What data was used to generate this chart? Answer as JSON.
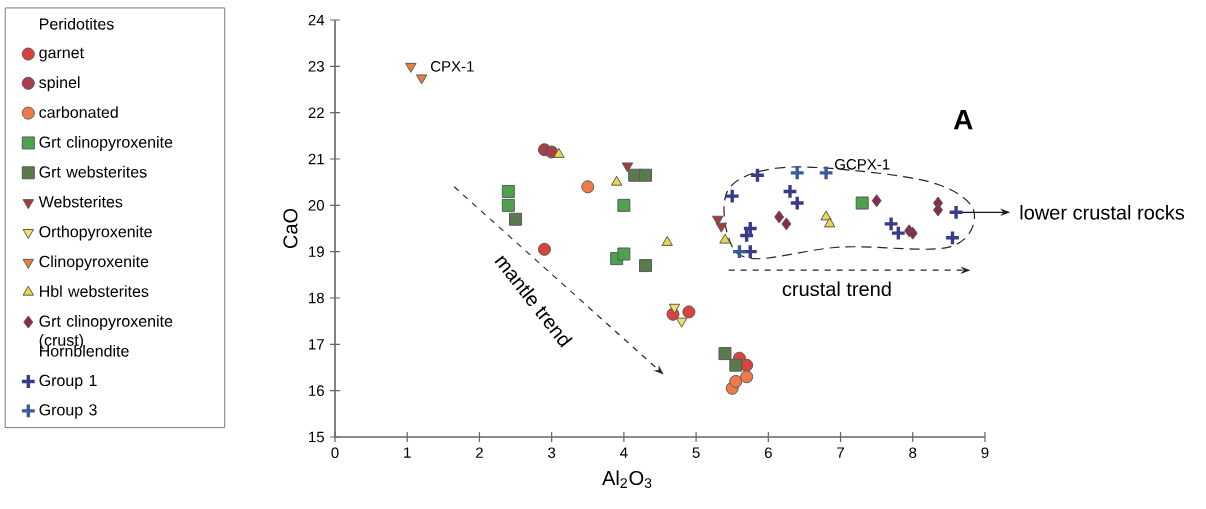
{
  "chart_data": {
    "type": "scatter",
    "xlabel": "Al$_{2}$O$_{3}$",
    "ylabel": "CaO",
    "legend_title": "Peridotites",
    "legend": "left",
    "xlim": [
      0,
      9
    ],
    "ylim": [
      15,
      24
    ],
    "xticks": [
      0,
      1,
      2,
      3,
      4,
      5,
      6,
      7,
      8,
      9
    ],
    "yticks": [
      15,
      16,
      17,
      18,
      19,
      20,
      21,
      22,
      23,
      24
    ],
    "series": [
      {
        "name": "garnet",
        "color": "#d9433c",
        "marker": "circle",
        "x": [
          2.9,
          4.68,
          4.9,
          5.6,
          5.7
        ],
        "values": [
          19.05,
          17.65,
          17.7,
          16.7,
          16.55
        ]
      },
      {
        "name": "spinel",
        "color": "#a8404a",
        "marker": "circle",
        "x": [
          2.9,
          3.0
        ],
        "values": [
          21.2,
          21.15
        ]
      },
      {
        "name": "carbonated",
        "color": "#f07a45",
        "marker": "circle",
        "x": [
          3.5,
          5.5,
          5.55,
          5.7
        ],
        "values": [
          20.4,
          16.05,
          16.2,
          16.3
        ]
      },
      {
        "name": "Grt clinopyroxenite",
        "color": "#4ea24e",
        "marker": "square",
        "x": [
          2.4,
          2.4,
          4.0,
          3.9,
          4.0,
          7.3
        ],
        "values": [
          20.3,
          20.0,
          20.0,
          18.85,
          18.95,
          20.05
        ]
      },
      {
        "name": "Grt websterites",
        "color": "#5a7a4e",
        "marker": "square",
        "x": [
          2.5,
          4.15,
          4.3,
          4.3,
          5.4,
          5.55
        ],
        "values": [
          19.7,
          20.65,
          20.65,
          18.7,
          16.8,
          16.55
        ]
      },
      {
        "name": "Websterites",
        "color": "#a04030",
        "marker": "triangle-down",
        "x": [
          4.05,
          5.3,
          5.35
        ],
        "values": [
          20.85,
          19.7,
          19.55
        ]
      },
      {
        "name": "Orthopyroxenite",
        "color": "#f0e070",
        "marker": "triangle-down",
        "x": [
          4.7,
          4.8
        ],
        "values": [
          17.8,
          17.5
        ]
      },
      {
        "name": "Clinopyroxenite",
        "color": "#e8803a",
        "marker": "triangle-down",
        "x": [
          1.05,
          1.2
        ],
        "values": [
          23.0,
          22.75
        ]
      },
      {
        "name": "Hbl websterites",
        "color": "#e8d84a",
        "marker": "triangle",
        "x": [
          3.1,
          3.9,
          4.6,
          5.4,
          6.8,
          6.85
        ],
        "values": [
          21.1,
          20.5,
          19.2,
          19.25,
          19.75,
          19.6
        ]
      },
      {
        "name": "Grt clinopyroxenite (crust)",
        "color": "#8a2a50",
        "marker": "diamond",
        "x": [
          6.15,
          6.25,
          7.5,
          7.95,
          8.0,
          8.35,
          8.35
        ],
        "values": [
          19.75,
          19.6,
          20.1,
          19.45,
          19.4,
          20.05,
          19.9
        ]
      },
      {
        "name": "Group 1",
        "color": "#3a3a8a",
        "marker": "cross",
        "x": [
          5.5,
          5.75,
          5.7,
          5.75,
          5.85,
          6.3,
          6.4,
          7.7,
          7.8,
          8.55,
          8.6
        ],
        "values": [
          20.2,
          19.5,
          19.35,
          19.0,
          20.65,
          20.3,
          20.05,
          19.6,
          19.4,
          19.3,
          19.85
        ]
      },
      {
        "name": "Group 3",
        "color": "#3a5a9a",
        "marker": "cross",
        "x": [
          6.4,
          6.8,
          5.6
        ],
        "values": [
          20.7,
          20.7,
          19.0
        ]
      }
    ],
    "annotations": [
      {
        "text": "CPX-1",
        "x": 1.05,
        "y": 23.0
      },
      {
        "text": "GCPX-1",
        "x": 7.3,
        "y": 20.05
      },
      "mantle trend",
      "crustal trend",
      "lower crustal rocks",
      "A",
      "Hornblendite"
    ]
  }
}
